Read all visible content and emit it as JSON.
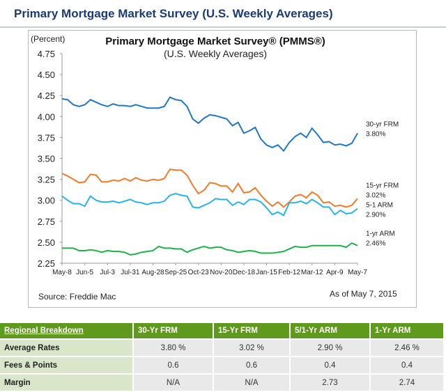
{
  "header": {
    "title": "Primary Mortgage Market Survey (U.S. Weekly Averages)"
  },
  "chart_data": {
    "type": "line",
    "title": "Primary Mortgage Market Survey® (PMMS®)",
    "subtitle": "(U.S. Weekly Averages)",
    "ylabel": "(Percent)",
    "ylim": [
      2.25,
      4.75
    ],
    "yticks": [
      "4.75",
      "4.50",
      "4.25",
      "4.00",
      "3.75",
      "3.50",
      "3.25",
      "3.00",
      "2.75",
      "2.50",
      "2.25"
    ],
    "xticks": [
      "May-8",
      "Jun-5",
      "Jul-3",
      "Jul-31",
      "Aug-28",
      "Sep-25",
      "Oct-23",
      "Nov-20",
      "Dec-18",
      "Jan-15",
      "Feb-12",
      "Mar-12",
      "Apr-9",
      "May-7"
    ],
    "grid": false,
    "source": "Source: Freddie Mac",
    "asof": "As of May 7, 2015",
    "series": [
      {
        "name": "30-yr FRM",
        "end_label": "3.80%",
        "color": "#1f77c9",
        "values": [
          4.21,
          4.2,
          4.14,
          4.12,
          4.14,
          4.2,
          4.17,
          4.14,
          4.12,
          4.15,
          4.13,
          4.13,
          4.12,
          4.14,
          4.12,
          4.1,
          4.1,
          4.1,
          4.12,
          4.23,
          4.2,
          4.19,
          4.12,
          3.97,
          3.92,
          3.98,
          4.02,
          4.01,
          3.99,
          3.97,
          3.89,
          3.93,
          3.8,
          3.83,
          3.87,
          3.73,
          3.66,
          3.63,
          3.66,
          3.59,
          3.69,
          3.76,
          3.8,
          3.75,
          3.86,
          3.78,
          3.69,
          3.7,
          3.66,
          3.67,
          3.65,
          3.68,
          3.8
        ]
      },
      {
        "name": "15-yr FRM",
        "end_label": "3.02%",
        "color": "#ee7a2a",
        "values": [
          3.32,
          3.29,
          3.25,
          3.21,
          3.22,
          3.31,
          3.3,
          3.22,
          3.22,
          3.24,
          3.23,
          3.26,
          3.23,
          3.27,
          3.24,
          3.23,
          3.25,
          3.24,
          3.26,
          3.37,
          3.36,
          3.36,
          3.3,
          3.18,
          3.08,
          3.12,
          3.21,
          3.2,
          3.17,
          3.17,
          3.1,
          3.2,
          3.09,
          3.1,
          3.15,
          3.06,
          2.99,
          2.93,
          2.98,
          2.92,
          2.98,
          3.05,
          3.07,
          3.03,
          3.1,
          3.06,
          2.97,
          2.98,
          2.93,
          2.94,
          2.92,
          2.94,
          3.02
        ]
      },
      {
        "name": "5-1 ARM",
        "end_label": "2.90%",
        "color": "#27b2ec",
        "values": [
          3.05,
          3.0,
          2.96,
          2.96,
          2.93,
          3.05,
          3.0,
          2.98,
          2.98,
          2.99,
          2.97,
          2.99,
          3.01,
          2.98,
          2.97,
          2.95,
          2.97,
          2.97,
          2.99,
          3.06,
          3.08,
          3.06,
          3.05,
          2.92,
          2.91,
          2.94,
          2.97,
          3.02,
          3.01,
          3.01,
          2.94,
          2.98,
          2.95,
          3.01,
          3.01,
          2.98,
          2.91,
          2.83,
          2.86,
          2.82,
          2.97,
          2.97,
          2.99,
          2.96,
          3.01,
          2.97,
          2.92,
          2.92,
          2.83,
          2.88,
          2.84,
          2.85,
          2.9
        ]
      },
      {
        "name": "1-yr ARM",
        "end_label": "2.46%",
        "color": "#1fb04a",
        "values": [
          2.43,
          2.43,
          2.43,
          2.4,
          2.4,
          2.41,
          2.4,
          2.38,
          2.4,
          2.39,
          2.39,
          2.38,
          2.35,
          2.36,
          2.38,
          2.39,
          2.4,
          2.45,
          2.43,
          2.43,
          2.42,
          2.42,
          2.38,
          2.41,
          2.43,
          2.45,
          2.43,
          2.44,
          2.44,
          2.41,
          2.4,
          2.38,
          2.39,
          2.4,
          2.39,
          2.37,
          2.37,
          2.37,
          2.38,
          2.39,
          2.42,
          2.45,
          2.44,
          2.44,
          2.46,
          2.46,
          2.46,
          2.46,
          2.46,
          2.46,
          2.44,
          2.49,
          2.46
        ]
      }
    ]
  },
  "table": {
    "headers": [
      "Regional Breakdown",
      "30-Yr FRM",
      "15-Yr FRM",
      "5/1-Yr ARM",
      "1-Yr ARM"
    ],
    "rows": [
      {
        "label": "Average Rates",
        "cells": [
          "3.80 %",
          "3.02 %",
          "2.90 %",
          "2.46 %"
        ]
      },
      {
        "label": "Fees & Points",
        "cells": [
          "0.6",
          "0.6",
          "0.4",
          "0.4"
        ]
      },
      {
        "label": "Margin",
        "cells": [
          "N/A",
          "N/A",
          "2.73",
          "2.74"
        ]
      }
    ]
  }
}
